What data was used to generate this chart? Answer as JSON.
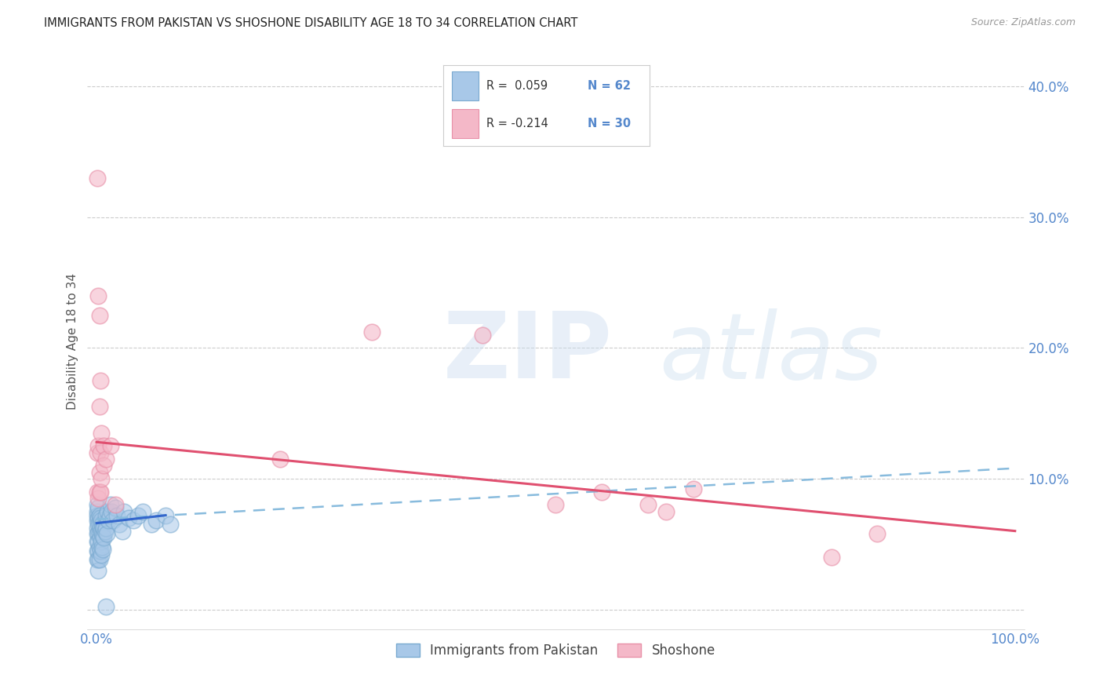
{
  "title": "IMMIGRANTS FROM PAKISTAN VS SHOSHONE DISABILITY AGE 18 TO 34 CORRELATION CHART",
  "source": "Source: ZipAtlas.com",
  "ylabel": "Disability Age 18 to 34",
  "legend_blue_r": "R =  0.059",
  "legend_blue_n": "N = 62",
  "legend_pink_r": "R = -0.214",
  "legend_pink_n": "N = 30",
  "legend_label_blue": "Immigrants from Pakistan",
  "legend_label_pink": "Shoshone",
  "blue_color": "#a8c8e8",
  "pink_color": "#f4b8c8",
  "blue_edge_color": "#7aaad0",
  "pink_edge_color": "#e890a8",
  "line_blue_color": "#3366cc",
  "line_pink_color": "#e05070",
  "dashed_line_color": "#88bbdd",
  "tick_color": "#5588cc",
  "grid_color": "#cccccc",
  "xlim": [
    -0.01,
    1.01
  ],
  "ylim": [
    -0.015,
    0.425
  ],
  "yticks": [
    0.0,
    0.1,
    0.2,
    0.3,
    0.4
  ],
  "ytick_labels": [
    "",
    "10.0%",
    "20.0%",
    "30.0%",
    "40.0%"
  ],
  "xticks": [
    0.0,
    0.25,
    0.5,
    0.75,
    1.0
  ],
  "xtick_labels": [
    "0.0%",
    "",
    "",
    "",
    "100.0%"
  ],
  "blue_x": [
    0.001,
    0.001,
    0.001,
    0.001,
    0.001,
    0.001,
    0.001,
    0.001,
    0.001,
    0.002,
    0.002,
    0.002,
    0.002,
    0.002,
    0.002,
    0.002,
    0.002,
    0.003,
    0.003,
    0.003,
    0.003,
    0.003,
    0.004,
    0.004,
    0.004,
    0.004,
    0.005,
    0.005,
    0.005,
    0.005,
    0.006,
    0.006,
    0.006,
    0.007,
    0.007,
    0.007,
    0.008,
    0.008,
    0.009,
    0.01,
    0.01,
    0.011,
    0.012,
    0.013,
    0.014,
    0.015,
    0.016,
    0.018,
    0.02,
    0.022,
    0.025,
    0.028,
    0.03,
    0.035,
    0.04,
    0.045,
    0.05,
    0.06,
    0.065,
    0.075,
    0.08,
    0.01
  ],
  "blue_y": [
    0.075,
    0.08,
    0.072,
    0.068,
    0.062,
    0.058,
    0.052,
    0.045,
    0.038,
    0.078,
    0.07,
    0.065,
    0.058,
    0.052,
    0.045,
    0.038,
    0.03,
    0.072,
    0.065,
    0.058,
    0.048,
    0.038,
    0.07,
    0.062,
    0.055,
    0.045,
    0.068,
    0.06,
    0.052,
    0.042,
    0.065,
    0.058,
    0.048,
    0.063,
    0.056,
    0.046,
    0.062,
    0.055,
    0.06,
    0.072,
    0.062,
    0.058,
    0.075,
    0.068,
    0.072,
    0.08,
    0.075,
    0.068,
    0.078,
    0.072,
    0.065,
    0.06,
    0.075,
    0.07,
    0.068,
    0.072,
    0.075,
    0.065,
    0.068,
    0.072,
    0.065,
    0.002
  ],
  "pink_x": [
    0.001,
    0.001,
    0.001,
    0.002,
    0.002,
    0.002,
    0.003,
    0.003,
    0.003,
    0.003,
    0.004,
    0.004,
    0.004,
    0.005,
    0.005,
    0.008,
    0.008,
    0.01,
    0.2,
    0.42,
    0.55,
    0.6,
    0.62,
    0.65,
    0.8,
    0.85,
    0.5,
    0.3,
    0.015,
    0.02
  ],
  "pink_y": [
    0.33,
    0.12,
    0.09,
    0.24,
    0.125,
    0.085,
    0.225,
    0.155,
    0.105,
    0.09,
    0.175,
    0.12,
    0.09,
    0.135,
    0.1,
    0.125,
    0.11,
    0.115,
    0.115,
    0.21,
    0.09,
    0.08,
    0.075,
    0.092,
    0.04,
    0.058,
    0.08,
    0.212,
    0.125,
    0.08
  ],
  "blue_line_x": [
    0.0,
    0.075
  ],
  "blue_line_y": [
    0.066,
    0.072
  ],
  "dashed_line_x": [
    0.0,
    1.0
  ],
  "dashed_line_y": [
    0.069,
    0.108
  ],
  "pink_line_x": [
    0.0,
    1.0
  ],
  "pink_line_y": [
    0.128,
    0.06
  ]
}
